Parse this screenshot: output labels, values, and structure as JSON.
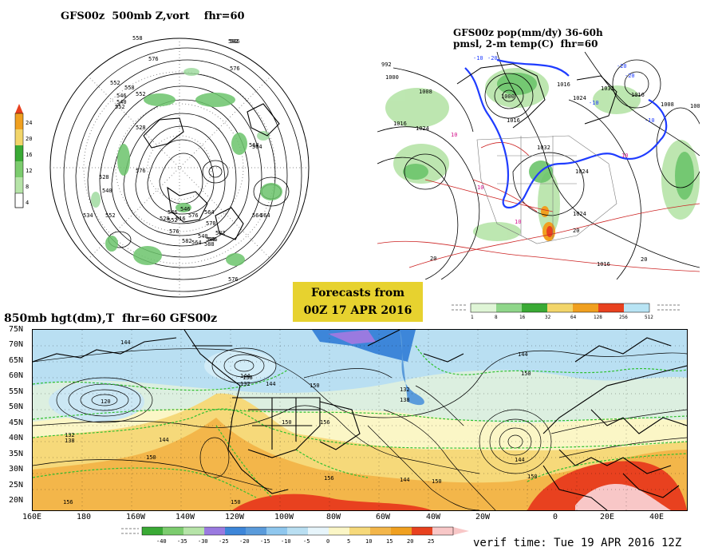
{
  "panels": {
    "vort500": {
      "title": "GFS00z  500mb Z,vort    fhr=60",
      "colorbar_labels": [
        "24",
        "20",
        "16",
        "12",
        "8",
        "4"
      ],
      "contour_labels": [
        "558",
        "576",
        "552",
        "546",
        "540",
        "528",
        "534",
        "552",
        "582",
        "546",
        "564",
        "528",
        "564",
        "570",
        "564",
        "576",
        "540",
        "552",
        "582",
        "552",
        "564",
        "576",
        "588",
        "528",
        "576",
        "558",
        "540",
        "582",
        "546",
        "576",
        "546",
        "552",
        "516",
        "564",
        "576",
        "586",
        "588",
        "564"
      ]
    },
    "pop": {
      "title_line1": "GFS00z pop(mm/dy) 36-60h",
      "title_line2": "pmsl, 2-m temp(C)  fhr=60",
      "colorbar_labels": [
        "1",
        "8",
        "16",
        "32",
        "64",
        "128",
        "256",
        "512"
      ],
      "contour_labels": [
        "992",
        "1000",
        "1008",
        "1016",
        "1024",
        "1032",
        "1000",
        "1016",
        "1024",
        "1016",
        "1008",
        "1024",
        "1032",
        "1016",
        "1024",
        "1016",
        "1008"
      ],
      "temp_labels": [
        "-10",
        "-20",
        "-10",
        "-20",
        "-10",
        "-20",
        "10",
        "10",
        "10",
        "10",
        "20",
        "20",
        "20"
      ]
    },
    "hgt850": {
      "title": "850mb hgt(dm),T  fhr=60 GFS00z",
      "lat_labels": [
        "75N",
        "70N",
        "65N",
        "60N",
        "55N",
        "50N",
        "45N",
        "40N",
        "35N",
        "30N",
        "25N",
        "20N"
      ],
      "lon_labels": [
        "160E",
        "180",
        "160W",
        "140W",
        "120W",
        "100W",
        "80W",
        "60W",
        "40W",
        "20W",
        "0",
        "20E",
        "40E"
      ],
      "contour_labels": [
        "144",
        "138",
        "144",
        "150",
        "132",
        "138",
        "144",
        "150",
        "156",
        "144",
        "150",
        "156",
        "150",
        "144",
        "120",
        "132",
        "138",
        "144",
        "150",
        "156",
        "150",
        "144",
        "132",
        "150"
      ],
      "colorbar_labels": [
        "-40",
        "-35",
        "-30",
        "-25",
        "-20",
        "-15",
        "-10",
        "-5",
        "0",
        "5",
        "10",
        "15",
        "20",
        "25"
      ]
    }
  },
  "forecast_box": {
    "line1": "Forecasts from",
    "line2": "00Z 17 APR 2016"
  },
  "verif_time": "verif time: Tue 19 APR 2016 12Z",
  "colors": {
    "forecast_box": "#e7d22f",
    "vort_green": "#6cc46c",
    "temp_warm": "#f2a93b",
    "temp_cold": "#8fc7ee",
    "isobar_blue": "#1f3cff"
  }
}
